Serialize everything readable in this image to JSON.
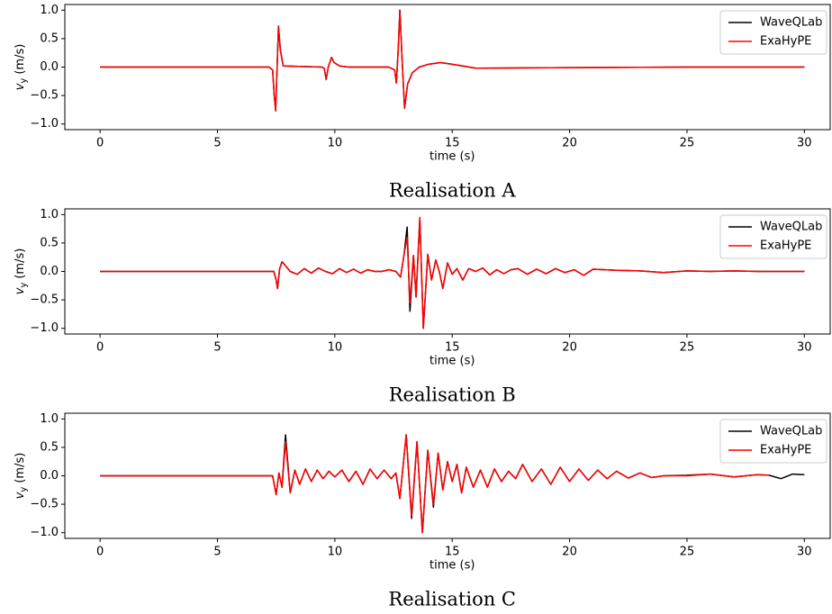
{
  "chart_data": [
    {
      "type": "line",
      "title": "Realisation A",
      "xlabel": "time (s)",
      "ylabel": {
        "symbol": "v",
        "subscript": "y",
        "unit": "(m/s)"
      },
      "legend": "upper right",
      "xlim": [
        -1.5,
        31.1
      ],
      "ylim": [
        -1.1,
        1.1
      ],
      "xticks": [
        0,
        5,
        10,
        15,
        20,
        25,
        30
      ],
      "yticks": [
        {
          "value": -1.0,
          "label": "−1.0"
        },
        {
          "value": -0.5,
          "label": "−0.5"
        },
        {
          "value": 0.0,
          "label": "0.0"
        },
        {
          "value": 0.5,
          "label": "0.5"
        },
        {
          "value": 1.0,
          "label": "1.0"
        }
      ],
      "x": [
        0,
        7.2,
        7.35,
        7.42,
        7.48,
        7.55,
        7.6,
        7.68,
        7.8,
        9.45,
        9.55,
        9.63,
        9.72,
        9.86,
        9.97,
        10.2,
        10.6,
        12.3,
        12.55,
        12.62,
        12.7,
        12.77,
        12.87,
        12.97,
        13.1,
        13.3,
        13.6,
        14,
        14.5,
        15,
        16,
        20,
        25,
        30
      ],
      "series": [
        {
          "name": "WaveQLab",
          "color": "#000000",
          "values": [
            0,
            0,
            -0.05,
            -0.5,
            -0.77,
            0.1,
            0.72,
            0.3,
            0.02,
            0,
            -0.02,
            -0.22,
            0,
            0.17,
            0.08,
            0.02,
            0,
            0,
            -0.05,
            -0.28,
            0.3,
            1.0,
            0.1,
            -0.72,
            -0.3,
            -0.1,
            0,
            0.05,
            0.08,
            0.05,
            -0.02,
            -0.01,
            0,
            0
          ]
        },
        {
          "name": "ExaHyPE",
          "color": "#ff0000",
          "values": [
            0,
            0,
            -0.05,
            -0.5,
            -0.76,
            0.1,
            0.71,
            0.3,
            0.02,
            0,
            -0.02,
            -0.22,
            0,
            0.17,
            0.08,
            0.02,
            0,
            0,
            -0.05,
            -0.28,
            0.3,
            0.98,
            0.1,
            -0.73,
            -0.3,
            -0.1,
            0,
            0.05,
            0.08,
            0.05,
            -0.02,
            -0.01,
            0,
            0
          ]
        }
      ]
    },
    {
      "type": "line",
      "title": "Realisation B",
      "xlabel": "time (s)",
      "ylabel": {
        "symbol": "v",
        "subscript": "y",
        "unit": "(m/s)"
      },
      "legend": "upper right",
      "xlim": [
        -1.5,
        31.1
      ],
      "ylim": [
        -1.1,
        1.1
      ],
      "xticks": [
        0,
        5,
        10,
        15,
        20,
        25,
        30
      ],
      "yticks": [
        {
          "value": -1.0,
          "label": "−1.0"
        },
        {
          "value": -0.5,
          "label": "−0.5"
        },
        {
          "value": 0.0,
          "label": "0.0"
        },
        {
          "value": 0.5,
          "label": "0.5"
        },
        {
          "value": 1.0,
          "label": "1.0"
        }
      ],
      "x": [
        0,
        7.4,
        7.5,
        7.56,
        7.65,
        7.75,
        7.9,
        8.1,
        8.4,
        8.7,
        9.0,
        9.3,
        9.6,
        9.9,
        10.2,
        10.5,
        10.8,
        11.1,
        11.4,
        11.7,
        12.0,
        12.3,
        12.6,
        12.8,
        12.95,
        13.08,
        13.2,
        13.35,
        13.46,
        13.62,
        13.77,
        13.96,
        14.12,
        14.3,
        14.45,
        14.6,
        14.8,
        15.0,
        15.2,
        15.45,
        15.7,
        16.0,
        16.3,
        16.6,
        16.9,
        17.2,
        17.5,
        17.8,
        18.2,
        18.6,
        19.0,
        19.4,
        19.8,
        20.2,
        20.6,
        21.0,
        22,
        23,
        24,
        25,
        26,
        27,
        28,
        29,
        30
      ],
      "series": [
        {
          "name": "WaveQLab",
          "color": "#000000",
          "values": [
            0,
            0,
            -0.15,
            -0.3,
            0.05,
            0.17,
            0.1,
            0.0,
            -0.05,
            0.05,
            -0.03,
            0.06,
            0.0,
            -0.04,
            0.05,
            -0.02,
            0.04,
            -0.03,
            0.03,
            0.0,
            0.0,
            0.03,
            0.0,
            -0.1,
            0.3,
            0.78,
            -0.7,
            0.28,
            -0.45,
            0.93,
            -1.0,
            0.3,
            -0.15,
            0.2,
            0.0,
            -0.3,
            0.15,
            -0.05,
            0.05,
            -0.15,
            0.05,
            0.0,
            0.06,
            -0.06,
            0.03,
            -0.04,
            0.03,
            0.05,
            -0.05,
            0.04,
            -0.04,
            0.05,
            -0.02,
            0.03,
            -0.07,
            0.04,
            0.02,
            0.01,
            -0.02,
            0.01,
            0.0,
            0.01,
            0.0,
            0.0,
            0.0
          ]
        },
        {
          "name": "ExaHyPE",
          "color": "#ff0000",
          "values": [
            0,
            0,
            -0.15,
            -0.3,
            0.05,
            0.17,
            0.1,
            0.0,
            -0.05,
            0.05,
            -0.03,
            0.06,
            0.0,
            -0.04,
            0.05,
            -0.02,
            0.04,
            -0.03,
            0.03,
            0.0,
            0.0,
            0.03,
            0.0,
            -0.1,
            0.3,
            0.6,
            -0.55,
            0.28,
            -0.45,
            0.95,
            -1.0,
            0.3,
            -0.15,
            0.2,
            0.0,
            -0.3,
            0.15,
            -0.05,
            0.05,
            -0.15,
            0.05,
            0.0,
            0.06,
            -0.06,
            0.03,
            -0.04,
            0.03,
            0.05,
            -0.05,
            0.04,
            -0.04,
            0.05,
            -0.02,
            0.03,
            -0.07,
            0.04,
            0.02,
            0.01,
            -0.02,
            0.01,
            0.0,
            0.01,
            0.0,
            0.0,
            0.0
          ]
        }
      ]
    },
    {
      "type": "line",
      "title": "Realisation C",
      "xlabel": "time (s)",
      "ylabel": {
        "symbol": "v",
        "subscript": "y",
        "unit": "(m/s)"
      },
      "legend": "upper right",
      "xlim": [
        -1.5,
        31.1
      ],
      "ylim": [
        -1.1,
        1.1
      ],
      "xticks": [
        0,
        5,
        10,
        15,
        20,
        25,
        30
      ],
      "yticks": [
        {
          "value": -1.0,
          "label": "−1.0"
        },
        {
          "value": -0.5,
          "label": "−0.5"
        },
        {
          "value": 0.0,
          "label": "0.0"
        },
        {
          "value": 0.5,
          "label": "0.5"
        },
        {
          "value": 1.0,
          "label": "1.0"
        }
      ],
      "x": [
        0,
        7.35,
        7.5,
        7.62,
        7.75,
        7.9,
        8.1,
        8.3,
        8.5,
        8.75,
        9.0,
        9.25,
        9.5,
        9.75,
        10.0,
        10.3,
        10.6,
        10.9,
        11.2,
        11.5,
        11.8,
        12.1,
        12.4,
        12.6,
        12.77,
        13.04,
        13.27,
        13.5,
        13.73,
        13.96,
        14.2,
        14.4,
        14.6,
        14.8,
        15.0,
        15.2,
        15.4,
        15.6,
        15.9,
        16.2,
        16.5,
        16.8,
        17.1,
        17.4,
        17.7,
        18.0,
        18.4,
        18.8,
        19.2,
        19.6,
        20.0,
        20.4,
        20.8,
        21.2,
        21.6,
        22.0,
        22.5,
        23.0,
        23.5,
        24.0,
        25,
        26,
        27,
        28,
        28.5,
        29,
        29.5,
        30
      ],
      "series": [
        {
          "name": "WaveQLab",
          "color": "#000000",
          "values": [
            0,
            0,
            -0.33,
            0.05,
            -0.2,
            0.72,
            -0.3,
            0.1,
            -0.15,
            0.12,
            -0.1,
            0.1,
            -0.05,
            0.08,
            -0.02,
            0.1,
            -0.1,
            0.08,
            -0.15,
            0.12,
            -0.05,
            0.1,
            -0.05,
            0.05,
            -0.4,
            0.72,
            -0.75,
            0.6,
            -1.0,
            0.45,
            -0.55,
            0.4,
            -0.25,
            0.25,
            -0.1,
            0.2,
            -0.3,
            0.15,
            -0.2,
            0.1,
            -0.2,
            0.12,
            -0.1,
            0.08,
            -0.05,
            0.2,
            -0.1,
            0.12,
            -0.15,
            0.15,
            -0.1,
            0.12,
            -0.08,
            0.1,
            -0.05,
            0.08,
            -0.04,
            0.05,
            -0.03,
            0.0,
            0.01,
            0.03,
            -0.02,
            0.02,
            0.01,
            -0.05,
            0.03,
            0.02
          ]
        },
        {
          "name": "ExaHyPE",
          "color": "#ff0000",
          "values": [
            0,
            0,
            -0.33,
            0.05,
            -0.2,
            0.6,
            -0.3,
            0.1,
            -0.15,
            0.12,
            -0.1,
            0.1,
            -0.05,
            0.08,
            -0.02,
            0.1,
            -0.1,
            0.08,
            -0.15,
            0.12,
            -0.05,
            0.1,
            -0.05,
            0.05,
            -0.4,
            0.72,
            -0.7,
            0.6,
            -1.0,
            0.45,
            -0.5,
            0.4,
            -0.25,
            0.25,
            -0.1,
            0.2,
            -0.3,
            0.15,
            -0.2,
            0.1,
            -0.2,
            0.12,
            -0.1,
            0.08,
            -0.05,
            0.2,
            -0.1,
            0.12,
            -0.15,
            0.15,
            -0.1,
            0.12,
            -0.08,
            0.1,
            -0.05,
            0.08,
            -0.04,
            0.05,
            -0.03,
            0.0,
            0.0,
            0.03,
            -0.02,
            0.02,
            0.01,
            null,
            null,
            null
          ]
        }
      ]
    }
  ]
}
